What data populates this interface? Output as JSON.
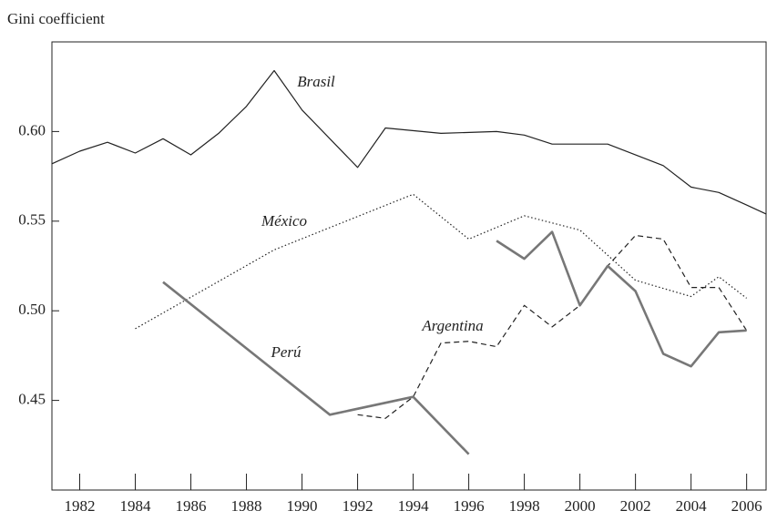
{
  "chart_data": {
    "type": "line",
    "y_label": "Gini coefficient",
    "xlim": [
      1981,
      2006.7
    ],
    "xticks": [
      1982,
      1984,
      1986,
      1988,
      1990,
      1992,
      1994,
      1996,
      1998,
      2000,
      2002,
      2004,
      2006
    ],
    "ylim": [
      0.4,
      0.65
    ],
    "yticks": [
      0.45,
      {
        "value": 0.5,
        "label": "0.50"
      },
      0.55,
      {
        "value": 0.6,
        "label": "0.60"
      }
    ],
    "series": [
      {
        "name": "Brasil",
        "color": "#222222",
        "style": "solid",
        "x": [
          1981,
          1982,
          1983,
          1984,
          1985,
          1986,
          1987,
          1988,
          1989,
          1990,
          1992,
          1993,
          1995,
          1997,
          1998,
          1999,
          2001,
          2003,
          2004,
          2005,
          2006,
          2006.7
        ],
        "values": [
          0.582,
          0.589,
          0.594,
          0.588,
          0.596,
          0.587,
          0.599,
          0.614,
          0.634,
          0.612,
          0.58,
          0.602,
          0.599,
          0.6,
          0.598,
          0.593,
          0.593,
          0.581,
          0.569,
          0.566,
          0.559,
          0.554
        ]
      },
      {
        "name": "México",
        "color": "#222222",
        "style": "dotted",
        "x": [
          1984,
          1989,
          1994,
          1996,
          1998,
          2000,
          2002,
          2004,
          2005,
          2006
        ],
        "values": [
          0.49,
          0.534,
          0.565,
          0.54,
          0.553,
          0.545,
          0.517,
          0.508,
          0.519,
          0.507
        ]
      },
      {
        "name": "Argentina",
        "color": "#222222",
        "style": "dashed",
        "x": [
          1992,
          1993,
          1994,
          1995,
          1996,
          1997,
          1998,
          1999,
          2000,
          2001,
          2002,
          2003,
          2004,
          2005,
          2006
        ],
        "values": [
          0.442,
          0.44,
          0.452,
          0.482,
          0.483,
          0.48,
          0.503,
          0.491,
          0.503,
          0.525,
          0.542,
          0.54,
          0.513,
          0.513,
          0.489
        ]
      },
      {
        "name": "Perú",
        "color": "#777777",
        "style": "thick",
        "x": [
          1985,
          1991,
          1994,
          1996,
          1996.5,
          1997,
          1998,
          1999,
          2000,
          2001,
          2002,
          2003,
          2004,
          2005,
          2006
        ],
        "values": [
          0.516,
          0.442,
          0.452,
          0.42,
          null,
          0.539,
          0.529,
          0.544,
          0.503,
          0.525,
          0.511,
          0.476,
          0.469,
          0.488,
          0.489
        ]
      }
    ]
  }
}
